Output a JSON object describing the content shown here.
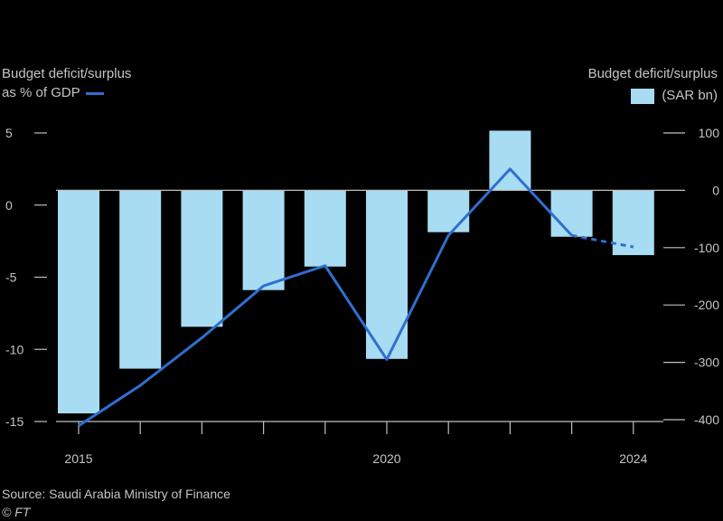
{
  "chart_data": {
    "type": "bar+line",
    "title": "",
    "left_axis": {
      "label_line1": "Budget deficit/surplus",
      "label_line2": "as % of GDP",
      "range": [
        -15,
        5
      ],
      "ticks": [
        5,
        0,
        -5,
        -10,
        -15
      ],
      "tick_labels": [
        "5",
        "0",
        "-5",
        "-10",
        "-15"
      ]
    },
    "right_axis": {
      "label_line1": "Budget deficit/surplus",
      "label_line2": "(SAR bn)",
      "range": [
        -400,
        100
      ],
      "ticks": [
        100,
        0,
        -100,
        -200,
        -300,
        -400
      ],
      "tick_labels": [
        "100",
        "0",
        "-100",
        "-200",
        "-300",
        "-400"
      ]
    },
    "x_ticks": [
      "2015",
      "2020",
      "2024"
    ],
    "x_tick_years": [
      2015,
      2020,
      2024
    ],
    "x": [
      2015,
      2016,
      2017,
      2018,
      2019,
      2020,
      2021,
      2022,
      2023,
      2024
    ],
    "series": [
      {
        "name": "Budget deficit/surplus (SAR bn)",
        "kind": "bar",
        "axis": "right",
        "color": "#a7dcf2",
        "values": [
          -389,
          -311,
          -238,
          -174,
          -133,
          -294,
          -73,
          104,
          -81,
          -113
        ]
      },
      {
        "name": "Budget deficit/surplus as % of GDP",
        "kind": "line",
        "axis": "left",
        "color": "#2f6fd0",
        "values": [
          -15.3,
          -12.5,
          -9.2,
          -5.6,
          -4.2,
          -10.7,
          -2.1,
          2.5,
          -2.1,
          -2.9
        ],
        "dashed_from_index": 8
      }
    ]
  },
  "source": "Source: Saudi Arabia Ministry of Finance",
  "credit": "© FT"
}
